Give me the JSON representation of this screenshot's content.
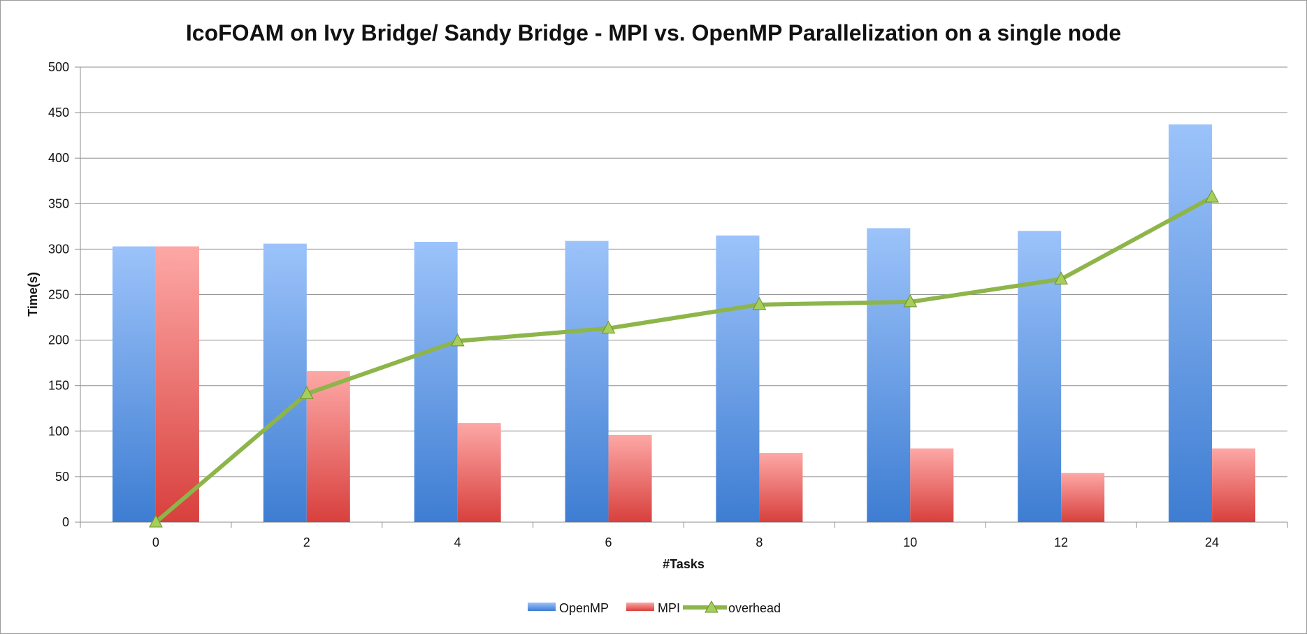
{
  "chart_data": {
    "type": "bar",
    "title": "IcoFOAM on Ivy Bridge/ Sandy Bridge - MPI vs. OpenMP Parallelization on a single node",
    "xlabel": "#Tasks",
    "ylabel": "Time(s)",
    "categories": [
      "0",
      "2",
      "4",
      "6",
      "8",
      "10",
      "12",
      "24"
    ],
    "ylim": [
      0,
      500
    ],
    "yticks": [
      0,
      50,
      100,
      150,
      200,
      250,
      300,
      350,
      400,
      450,
      500
    ],
    "grid": true,
    "legend_position": "bottom",
    "series": [
      {
        "name": "OpenMP",
        "type": "bar",
        "values": [
          303,
          306,
          308,
          309,
          315,
          323,
          320,
          437
        ],
        "color_top": "#9cc3fa",
        "color_bottom": "#3e7dd2"
      },
      {
        "name": "MPI",
        "type": "bar",
        "values": [
          303,
          166,
          109,
          96,
          76,
          81,
          54,
          81
        ],
        "color_top": "#fda8a6",
        "color_bottom": "#d8403d"
      },
      {
        "name": "overhead",
        "type": "line",
        "marker": "triangle",
        "values": [
          0,
          141,
          199,
          213,
          239,
          242,
          267,
          357
        ],
        "color": "#8db54a",
        "marker_color": "#a6ce5a"
      }
    ]
  }
}
